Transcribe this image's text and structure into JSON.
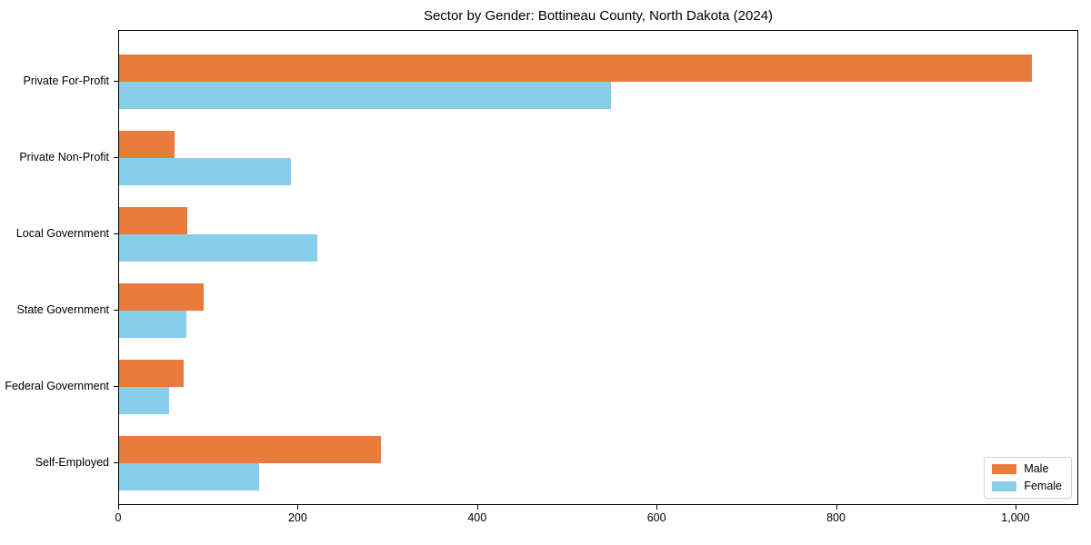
{
  "chart_data": {
    "type": "bar",
    "orientation": "horizontal",
    "title": "Sector by Gender: Bottineau County, North Dakota (2024)",
    "categories": [
      "Private For-Profit",
      "Private Non-Profit",
      "Local Government",
      "State Government",
      "Federal Government",
      "Self-Employed"
    ],
    "series": [
      {
        "name": "Male",
        "color": "#E97B3C",
        "values": [
          1019,
          62,
          76,
          94,
          72,
          292
        ]
      },
      {
        "name": "Female",
        "color": "#87CEEB",
        "values": [
          549,
          192,
          221,
          75,
          56,
          156
        ]
      }
    ],
    "xlim": [
      0,
      1070
    ],
    "x_ticks": [
      0,
      200,
      400,
      600,
      800,
      1000
    ],
    "x_tick_labels": [
      "0",
      "200",
      "400",
      "600",
      "800",
      "1,000"
    ],
    "xlabel": "",
    "ylabel": "",
    "grid": false,
    "legend_position": "lower right",
    "frame_color": "#000000",
    "legend_border_color": "#d3d3d3",
    "background_color": "#ffffff"
  }
}
